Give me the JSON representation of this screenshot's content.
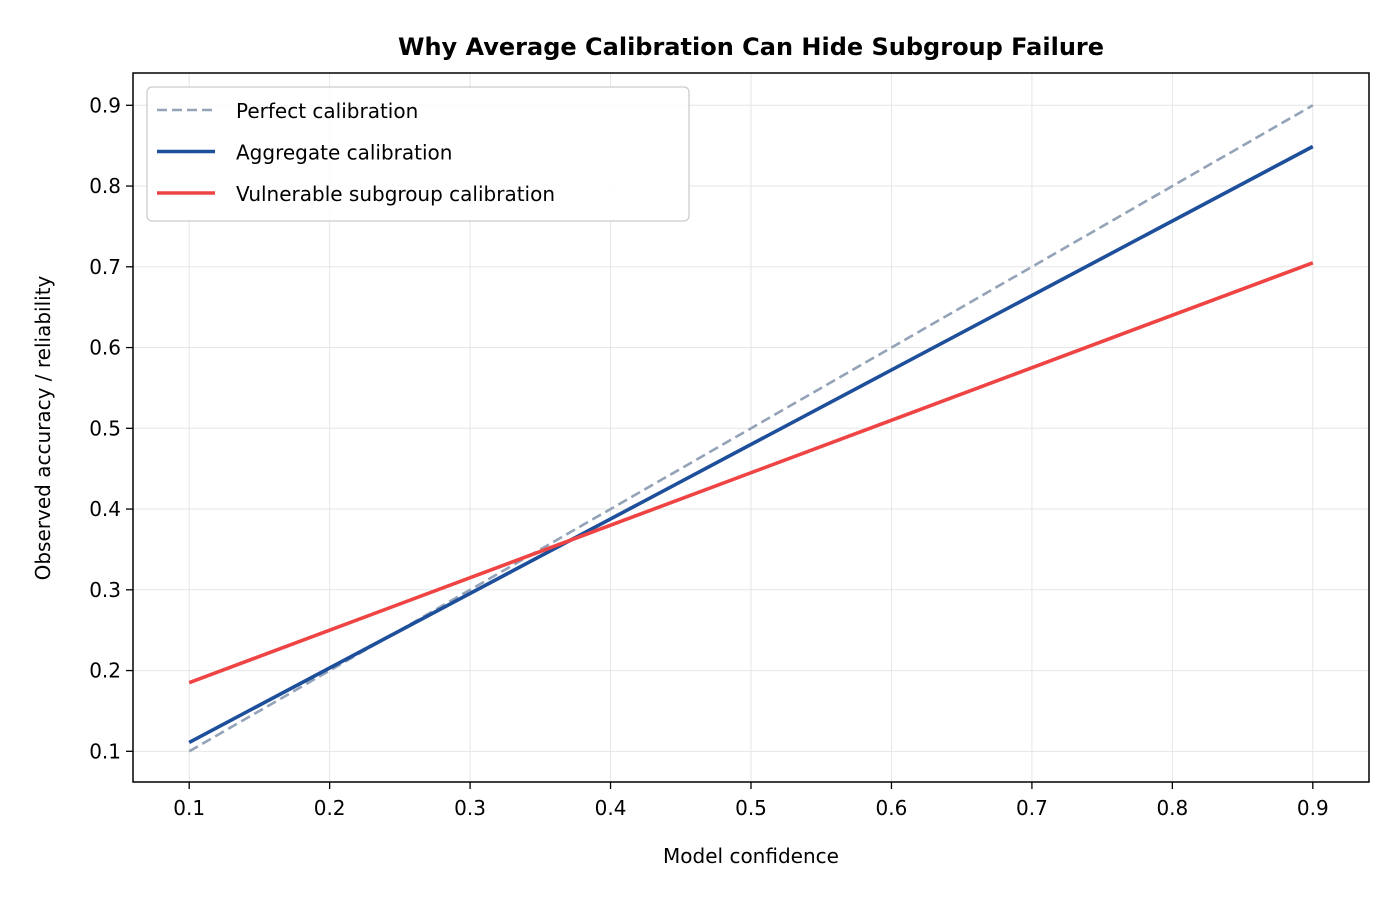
{
  "chart_data": {
    "type": "line",
    "title": "Why Average Calibration Can Hide Subgroup Failure",
    "xlabel": "Model confidence",
    "ylabel": "Observed accuracy / reliability",
    "xlim": [
      0.06,
      0.94
    ],
    "ylim": [
      0.062,
      0.94
    ],
    "xticks": [
      "0.1",
      "0.2",
      "0.3",
      "0.4",
      "0.5",
      "0.6",
      "0.7",
      "0.8",
      "0.9"
    ],
    "yticks": [
      "0.1",
      "0.2",
      "0.3",
      "0.4",
      "0.5",
      "0.6",
      "0.7",
      "0.8",
      "0.9"
    ],
    "grid": true,
    "legend_position": "top-left",
    "series": [
      {
        "name": "Perfect calibration",
        "color": "#94a3b8",
        "style": "dashed",
        "x": [
          0.1,
          0.9
        ],
        "y": [
          0.1,
          0.9
        ]
      },
      {
        "name": "Aggregate calibration",
        "color": "#1e4f9a",
        "style": "solid",
        "x": [
          0.1,
          0.9
        ],
        "y": [
          0.111,
          0.849
        ]
      },
      {
        "name": "Vulnerable subgroup calibration",
        "color": "#ef4444",
        "style": "solid",
        "x": [
          0.1,
          0.9
        ],
        "y": [
          0.185,
          0.705
        ]
      }
    ]
  }
}
